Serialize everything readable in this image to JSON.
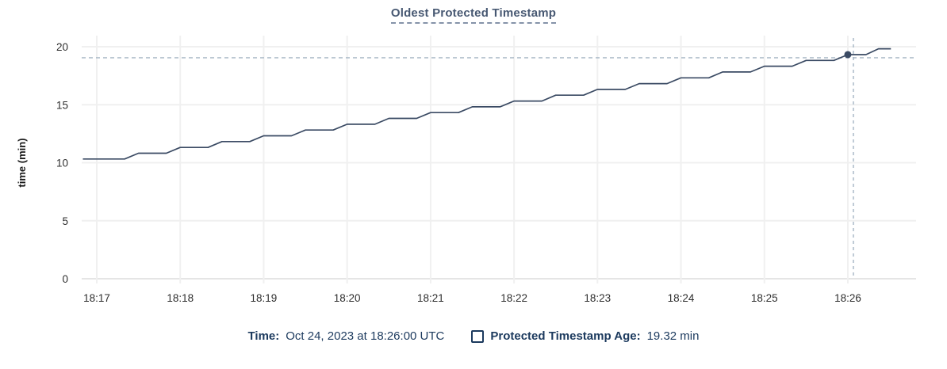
{
  "title": "Oldest Protected Timestamp",
  "tooltip_bar": {
    "time_label": "Time:",
    "time_value": "Oct 24, 2023 at 18:26:00 UTC",
    "series_label": "Protected Timestamp Age:",
    "series_value": "19.32 min",
    "series_checkbox_checked": false
  },
  "colors": {
    "title_text": "#475872",
    "title_underline": "#8593a9",
    "legend_text": "#1c3a5e",
    "series_line": "#3a4a63",
    "hover_point": "#3a4a63",
    "crosshair": "#a5b5c4",
    "gridline": "#f0f0f0",
    "axis_line": "#e5e5e5",
    "tick_text": "#2e2e2e",
    "axis_label_text": "#1a1a1a"
  },
  "chart_data": {
    "type": "line",
    "title": "Oldest Protected Timestamp",
    "xlabel": "",
    "ylabel": "time (min)",
    "ylim": [
      0,
      20
    ],
    "y_ticks": [
      0,
      5,
      10,
      15,
      20
    ],
    "grid": true,
    "x_unit": "seconds since 18:17:00",
    "x_ticks": [
      {
        "label": "18:17",
        "t": 0
      },
      {
        "label": "18:18",
        "t": 60
      },
      {
        "label": "18:19",
        "t": 120
      },
      {
        "label": "18:20",
        "t": 180
      },
      {
        "label": "18:21",
        "t": 240
      },
      {
        "label": "18:22",
        "t": 300
      },
      {
        "label": "18:23",
        "t": 360
      },
      {
        "label": "18:24",
        "t": 420
      },
      {
        "label": "18:25",
        "t": 480
      },
      {
        "label": "18:26",
        "t": 540
      }
    ],
    "series": [
      {
        "name": "Protected Timestamp Age",
        "points": [
          [
            -10,
            10.32
          ],
          [
            20,
            10.32
          ],
          [
            30,
            10.82
          ],
          [
            50,
            10.82
          ],
          [
            60,
            11.32
          ],
          [
            80,
            11.32
          ],
          [
            90,
            11.82
          ],
          [
            110,
            11.82
          ],
          [
            120,
            12.32
          ],
          [
            140,
            12.32
          ],
          [
            150,
            12.82
          ],
          [
            170,
            12.82
          ],
          [
            180,
            13.32
          ],
          [
            200,
            13.32
          ],
          [
            210,
            13.82
          ],
          [
            230,
            13.82
          ],
          [
            240,
            14.32
          ],
          [
            260,
            14.32
          ],
          [
            270,
            14.82
          ],
          [
            290,
            14.82
          ],
          [
            300,
            15.32
          ],
          [
            320,
            15.32
          ],
          [
            330,
            15.82
          ],
          [
            350,
            15.82
          ],
          [
            360,
            16.32
          ],
          [
            380,
            16.32
          ],
          [
            390,
            16.82
          ],
          [
            410,
            16.82
          ],
          [
            420,
            17.32
          ],
          [
            440,
            17.32
          ],
          [
            450,
            17.82
          ],
          [
            470,
            17.82
          ],
          [
            480,
            18.32
          ],
          [
            500,
            18.32
          ],
          [
            510,
            18.82
          ],
          [
            530,
            18.82
          ],
          [
            540,
            19.32
          ],
          [
            553,
            19.32
          ],
          [
            562,
            19.82
          ],
          [
            571,
            19.82
          ]
        ]
      }
    ],
    "hover": {
      "time_label": "18:26:00",
      "t": 540,
      "value": 19.32,
      "crosshair": true
    },
    "legend_position": "bottom"
  }
}
